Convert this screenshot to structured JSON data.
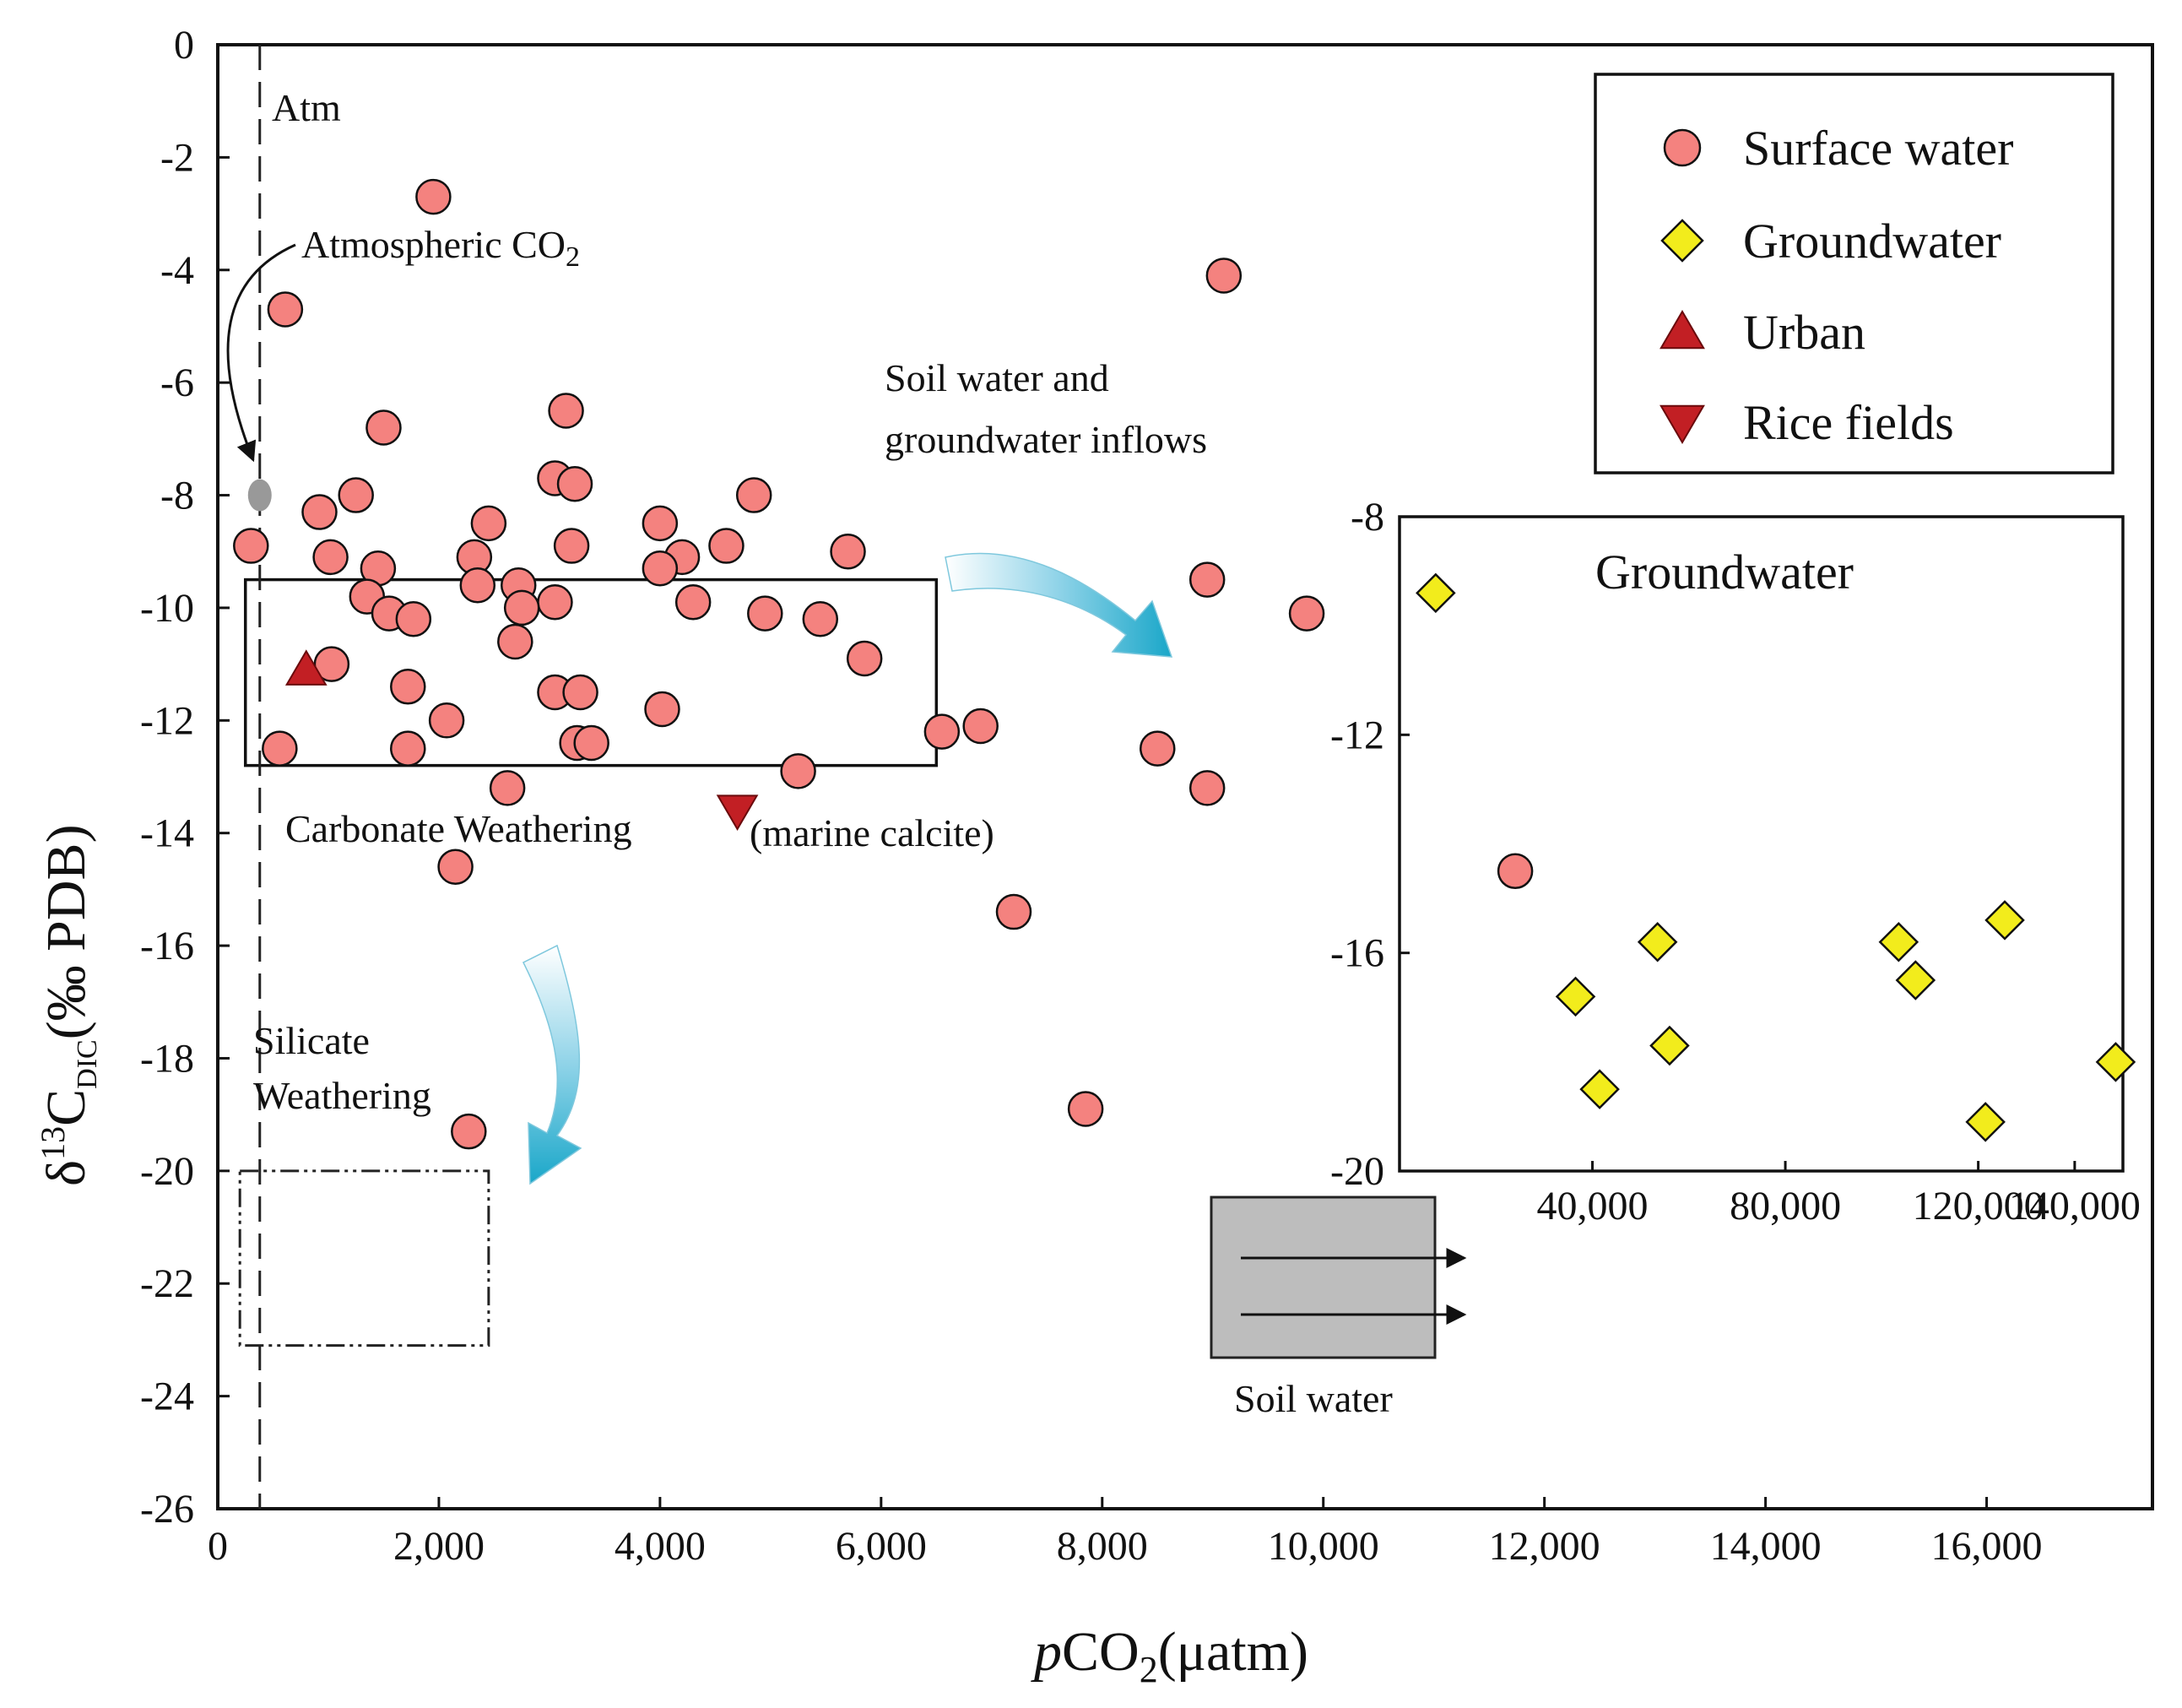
{
  "chart_data": [
    {
      "type": "scatter",
      "title": "",
      "xlabel": "pCO2(μatm)",
      "xlabel_parts": {
        "italic": "p",
        "base": "CO",
        "sub": "2",
        "rest": "(μatm)"
      },
      "ylabel": "δ13CDIC(‰ PDB)",
      "ylabel_parts": {
        "delta": "δ",
        "sup": "13",
        "base": "C",
        "sub": "DIC",
        "rest": "(‰ PDB)"
      },
      "xlim": [
        0,
        17500
      ],
      "ylim": [
        -26,
        0
      ],
      "x_ticks": [
        0,
        2000,
        4000,
        6000,
        8000,
        10000,
        12000,
        14000,
        16000
      ],
      "x_tick_labels": [
        "0",
        "2,000",
        "4,000",
        "6,000",
        "8,000",
        "10,000",
        "12,000",
        "14,000",
        "16,000"
      ],
      "y_ticks": [
        0,
        -2,
        -4,
        -6,
        -8,
        -10,
        -12,
        -14,
        -16,
        -18,
        -20,
        -22,
        -24,
        -26
      ],
      "y_tick_labels": [
        "0",
        "-2",
        "-4",
        "-6",
        "-8",
        "-10",
        "-12",
        "-14",
        "-16",
        "-18",
        "-20",
        "-22",
        "-24",
        "-26"
      ],
      "grid": false,
      "legend_position": "top-right",
      "series": [
        {
          "name": "Surface water",
          "marker": "circle",
          "color": "#f4827f",
          "points": [
            [
              1950,
              -2.7
            ],
            [
              9100,
              -4.1
            ],
            [
              610,
              -4.7
            ],
            [
              1500,
              -6.8
            ],
            [
              3150,
              -6.5
            ],
            [
              1250,
              -8.0
            ],
            [
              3050,
              -7.7
            ],
            [
              3230,
              -7.8
            ],
            [
              4850,
              -8.0
            ],
            [
              920,
              -8.3
            ],
            [
              300,
              -8.9
            ],
            [
              1020,
              -9.1
            ],
            [
              2450,
              -8.5
            ],
            [
              2320,
              -9.1
            ],
            [
              3200,
              -8.9
            ],
            [
              4000,
              -8.5
            ],
            [
              4600,
              -8.9
            ],
            [
              5700,
              -9.0
            ],
            [
              4200,
              -9.1
            ],
            [
              1450,
              -9.3
            ],
            [
              4000,
              -9.3
            ],
            [
              8950,
              -9.5
            ],
            [
              2350,
              -9.6
            ],
            [
              2720,
              -9.6
            ],
            [
              1350,
              -9.8
            ],
            [
              3050,
              -9.9
            ],
            [
              2750,
              -10.0
            ],
            [
              4300,
              -9.9
            ],
            [
              1550,
              -10.1
            ],
            [
              1770,
              -10.2
            ],
            [
              4950,
              -10.1
            ],
            [
              5450,
              -10.2
            ],
            [
              9850,
              -10.1
            ],
            [
              2690,
              -10.6
            ],
            [
              5850,
              -10.9
            ],
            [
              1030,
              -11.0
            ],
            [
              1720,
              -11.4
            ],
            [
              3050,
              -11.5
            ],
            [
              3280,
              -11.5
            ],
            [
              4020,
              -11.8
            ],
            [
              2070,
              -12.0
            ],
            [
              6900,
              -12.1
            ],
            [
              6550,
              -12.2
            ],
            [
              3250,
              -12.4
            ],
            [
              3380,
              -12.4
            ],
            [
              560,
              -12.5
            ],
            [
              1720,
              -12.5
            ],
            [
              8500,
              -12.5
            ],
            [
              5250,
              -12.9
            ],
            [
              2620,
              -13.2
            ],
            [
              8950,
              -13.2
            ],
            [
              2150,
              -14.6
            ],
            [
              7200,
              -15.4
            ],
            [
              7850,
              -18.9
            ],
            [
              2270,
              -19.3
            ]
          ]
        },
        {
          "name": "Urban",
          "marker": "triangle-up",
          "color": "#c21f24",
          "points": [
            [
              800,
              -11.1
            ]
          ]
        },
        {
          "name": "Rice fields",
          "marker": "triangle-down",
          "color": "#c21f24",
          "points": [
            [
              4700,
              -13.6
            ]
          ]
        },
        {
          "name": "Atmospheric CO2",
          "marker": "ellipse",
          "color": "#999999",
          "points": [
            [
              380,
              -8.0
            ]
          ]
        }
      ],
      "reference_lines": [
        {
          "orientation": "vertical",
          "x": 380,
          "label": "Atm",
          "style": "dashed"
        }
      ],
      "regions": [
        {
          "name": "carbonate-weathering",
          "x": [
            250,
            6500
          ],
          "y": [
            -12.8,
            -9.5
          ],
          "style": "solid"
        },
        {
          "name": "silicate-weathering",
          "x": [
            200,
            2450
          ],
          "y": [
            -23.1,
            -20.0
          ],
          "style": "dash-dot"
        }
      ],
      "annotations": {
        "atm": "Atm",
        "atmospheric_co2": {
          "base": "Atmospheric CO",
          "sub": "2"
        },
        "soil_inflow_line1": "Soil water and",
        "soil_inflow_line2": "groundwater inflows",
        "carbonate": "Carbonate Weathering",
        "marine_calcite": "(marine calcite)",
        "silicate_line1": "Silicate",
        "silicate_line2": "Weathering",
        "soil_water": "Soil water"
      },
      "legend": {
        "entries": [
          {
            "label": "Surface water",
            "marker": "circle",
            "color": "#f4827f"
          },
          {
            "label": "Groundwater",
            "marker": "diamond",
            "color": "#f2ec1c"
          },
          {
            "label": "Urban",
            "marker": "triangle-up",
            "color": "#c21f24"
          },
          {
            "label": "Rice fields",
            "marker": "triangle-down",
            "color": "#c21f24"
          }
        ]
      }
    },
    {
      "type": "scatter",
      "title": "Groundwater",
      "inset": true,
      "xlim": [
        0,
        150000
      ],
      "ylim": [
        -20,
        -8
      ],
      "x_ticks": [
        40000,
        80000,
        120000,
        140000
      ],
      "x_tick_labels": [
        "40,000",
        "80,000",
        "120,000",
        "140,000"
      ],
      "y_ticks": [
        -8,
        -12,
        -16,
        -20
      ],
      "y_tick_labels": [
        "-8",
        "-12",
        "-16",
        "-20"
      ],
      "series": [
        {
          "name": "Groundwater",
          "marker": "diamond",
          "color": "#f2ec1c",
          "points": [
            [
              7500,
              -9.4
            ],
            [
              53500,
              -15.8
            ],
            [
              103500,
              -15.8
            ],
            [
              125500,
              -15.4
            ],
            [
              36500,
              -16.8
            ],
            [
              107000,
              -16.5
            ],
            [
              56000,
              -17.7
            ],
            [
              41500,
              -18.5
            ],
            [
              121500,
              -19.1
            ],
            [
              148500,
              -18.0
            ]
          ]
        },
        {
          "name": "Surface water",
          "marker": "circle",
          "color": "#f4827f",
          "points": [
            [
              24000,
              -14.5
            ]
          ]
        }
      ]
    }
  ]
}
